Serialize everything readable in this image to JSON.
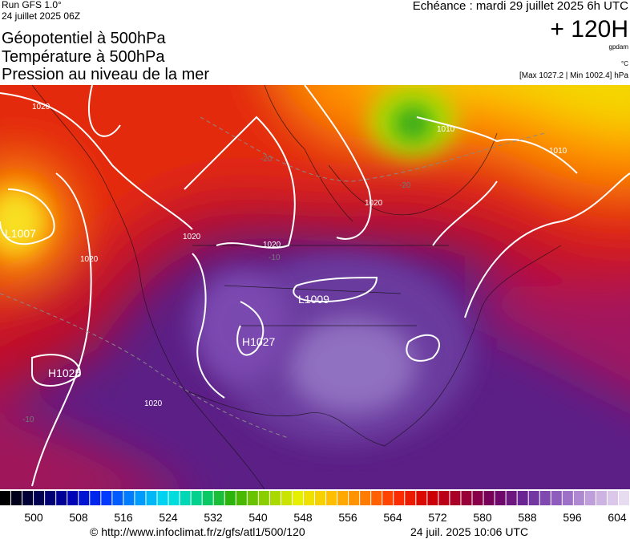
{
  "header": {
    "run": "Run GFS 1.0°",
    "run_date": "24 juillet 2025 06Z",
    "title_lines": [
      "Géopotentiel à 500hPa",
      "Température à 500hPa",
      "Pression au niveau de la mer"
    ],
    "valid": "Echéance : mardi 29 juillet 2025 6h UTC",
    "lead": "+ 120H",
    "unit_geo": "gpdam",
    "unit_temp": "°C",
    "pressure_range": "[Max 1027.2 | Min 1002.4] hPa"
  },
  "map": {
    "labels": [
      "L1007",
      "H1025",
      "H1027",
      "L1009",
      "1020",
      "1020",
      "1020",
      "1020",
      "1020",
      "1010",
      "1010",
      "1020",
      "-20",
      "-20",
      "-10",
      "-10"
    ]
  },
  "colorbar": {
    "ticks": [
      500,
      508,
      516,
      524,
      532,
      540,
      548,
      556,
      564,
      572,
      580,
      588,
      596,
      604
    ]
  },
  "footer": {
    "source": "© http://www.infoclimat.fr/z/gfs/atl1/500/120",
    "generated": "24 juil. 2025 10:06 UTC"
  }
}
